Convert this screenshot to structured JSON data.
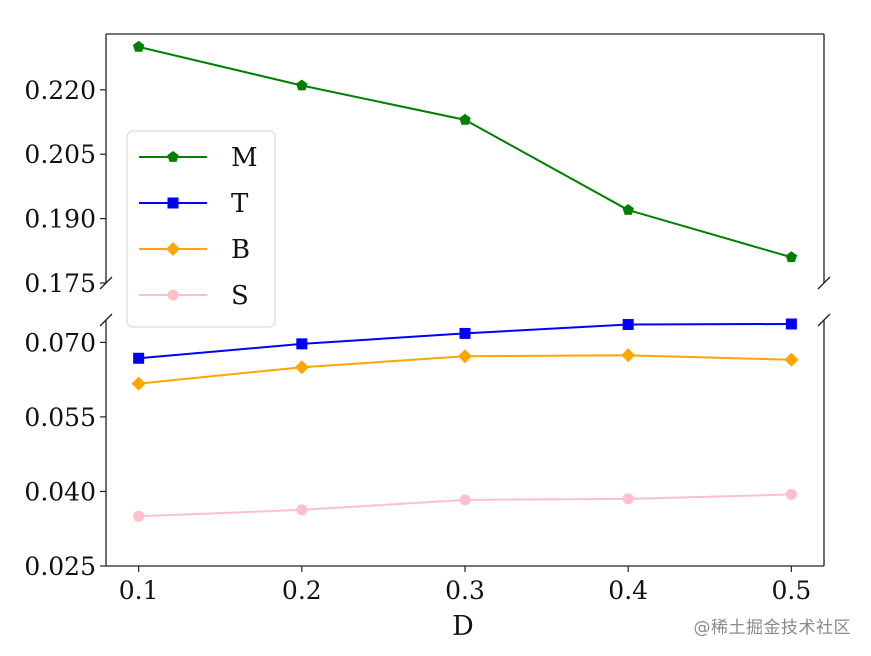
{
  "chart_data": {
    "type": "line",
    "xlabel": "D",
    "ylabel": "",
    "title": "",
    "x": [
      0.1,
      0.2,
      0.3,
      0.4,
      0.5
    ],
    "x_tick_labels": [
      "0.1",
      "0.2",
      "0.3",
      "0.4",
      "0.5"
    ],
    "broken_y_axis": true,
    "upper_panel": {
      "ylim": [
        0.175,
        0.233
      ],
      "yticks": [
        "0.175",
        "0.190",
        "0.205",
        "0.220"
      ]
    },
    "lower_panel": {
      "ylim": [
        0.025,
        0.0745
      ],
      "yticks": [
        "0.025",
        "0.040",
        "0.055",
        "0.070"
      ]
    },
    "series": [
      {
        "name": "M",
        "panel": "upper",
        "color": "#008000",
        "marker": "pentagon",
        "values": [
          0.23,
          0.221,
          0.213,
          0.192,
          0.181
        ]
      },
      {
        "name": "T",
        "panel": "lower",
        "color": "#0000ff",
        "marker": "square",
        "values": [
          0.0668,
          0.0697,
          0.0718,
          0.0736,
          0.0737
        ]
      },
      {
        "name": "B",
        "panel": "lower",
        "color": "#ffa500",
        "marker": "diamond",
        "values": [
          0.0617,
          0.065,
          0.0672,
          0.0674,
          0.0665
        ]
      },
      {
        "name": "S",
        "panel": "lower",
        "color": "#ffc0cb",
        "marker": "circle",
        "values": [
          0.035,
          0.0363,
          0.0383,
          0.0385,
          0.0394
        ]
      }
    ],
    "legend": {
      "position": "upper-left-overlapping-break",
      "entries": [
        "M",
        "T",
        "B",
        "S"
      ]
    },
    "grid": false
  },
  "watermark": "@稀土掘金技术社区"
}
